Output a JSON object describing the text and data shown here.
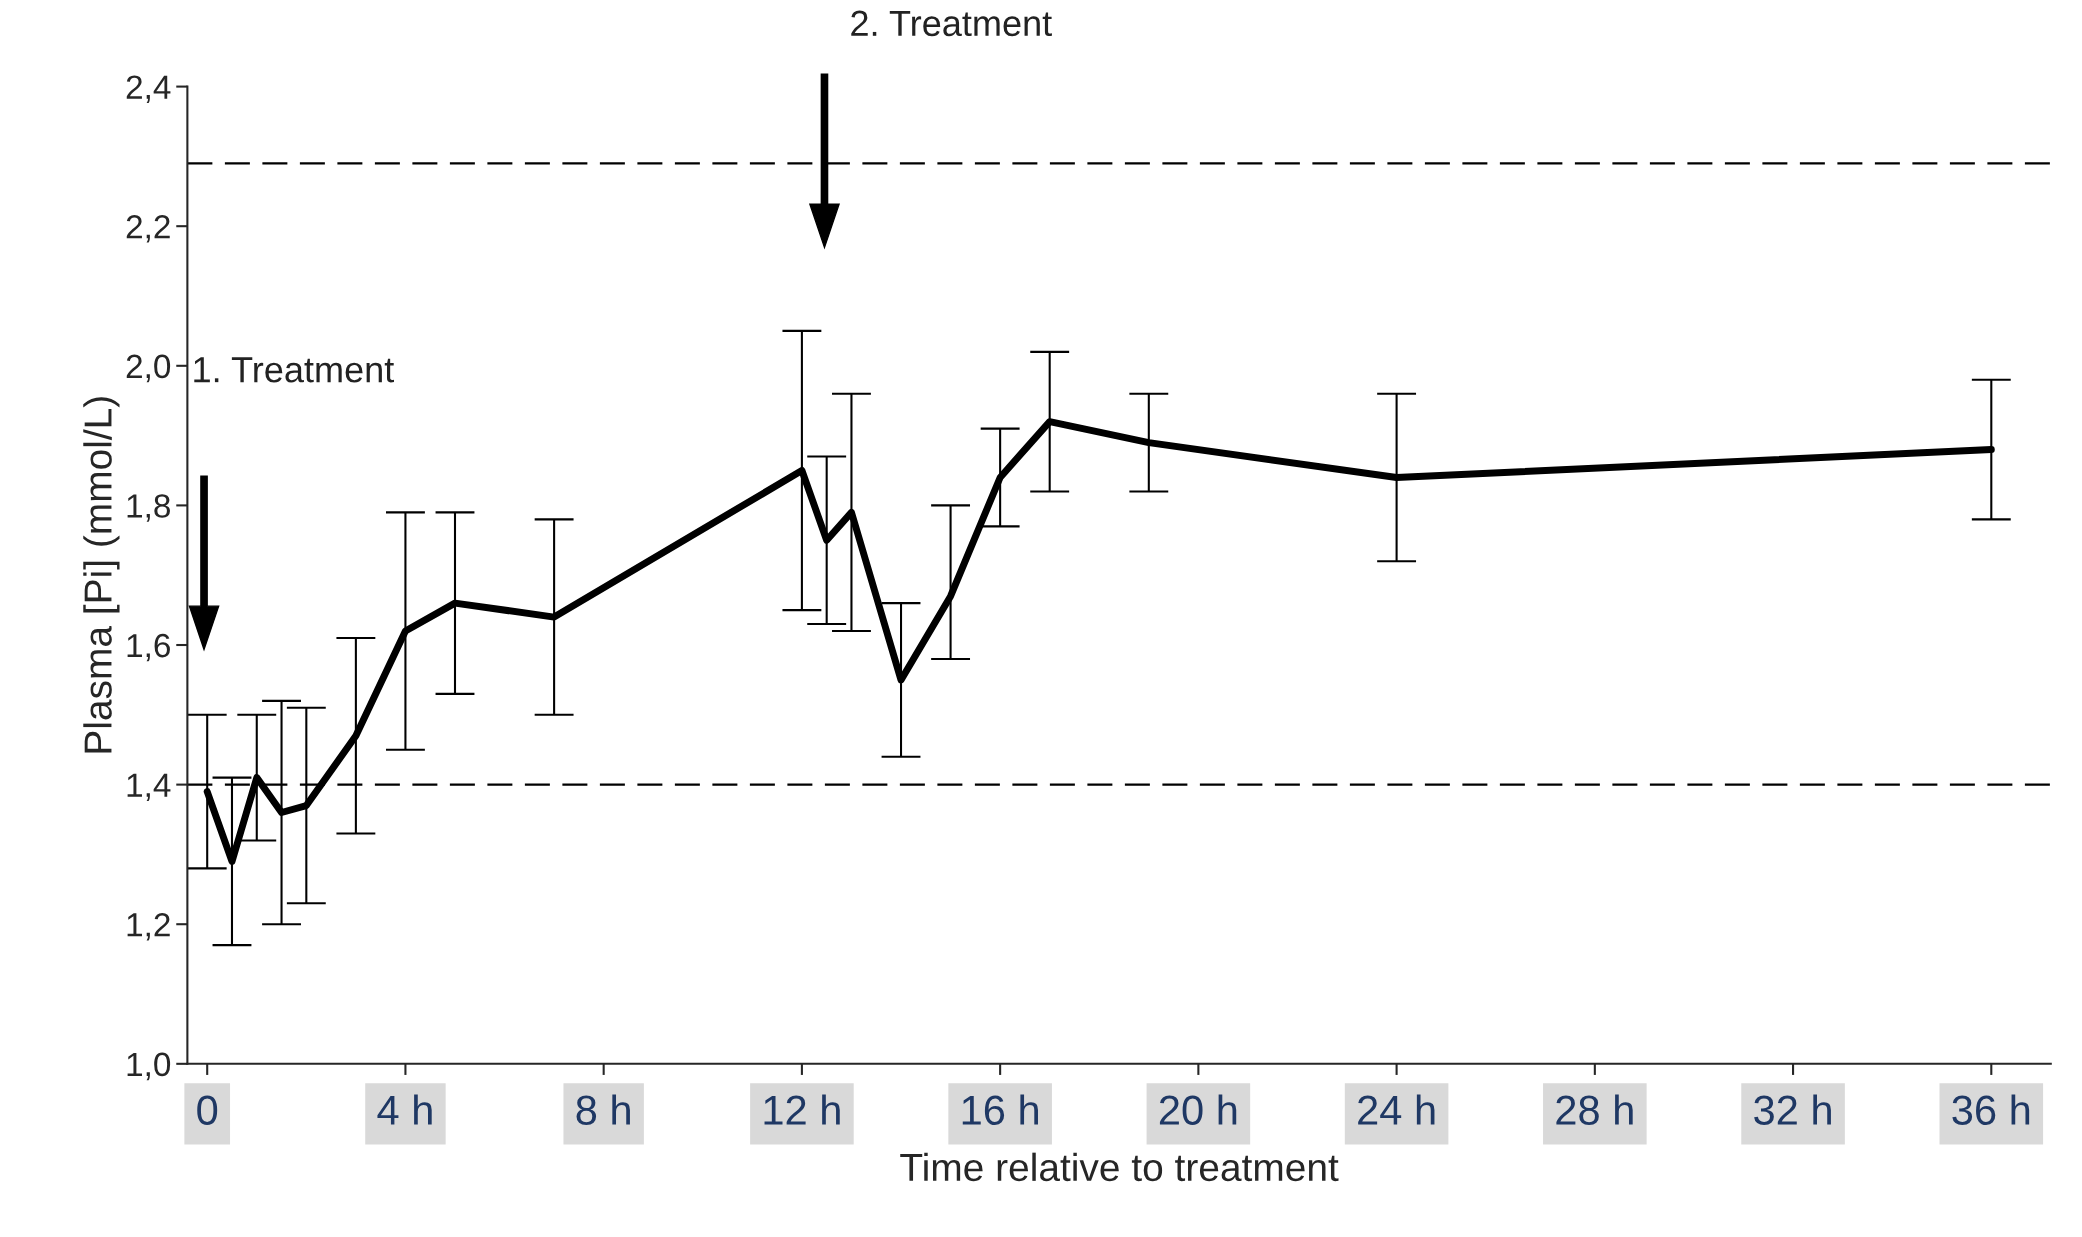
{
  "chart_data": {
    "type": "line",
    "xlabel": "Time relative to treatment",
    "ylabel": "Plasma [Pi] (mmol/L)",
    "x": [
      0,
      0.5,
      1,
      1.5,
      2,
      3,
      4,
      5,
      7,
      12,
      12.5,
      13,
      14,
      15,
      16,
      17,
      19,
      24,
      36
    ],
    "series": [
      {
        "color": "#000000",
        "values": [
          1.39,
          1.29,
          1.41,
          1.36,
          1.37,
          1.47,
          1.62,
          1.66,
          1.64,
          1.85,
          1.75,
          1.79,
          1.55,
          1.67,
          1.84,
          1.92,
          1.89,
          1.84,
          1.88
        ],
        "errors": [
          [
            1.28,
            1.5
          ],
          [
            1.17,
            1.41
          ],
          [
            1.32,
            1.5
          ],
          [
            1.2,
            1.52
          ],
          [
            1.23,
            1.51
          ],
          [
            1.33,
            1.61
          ],
          [
            1.45,
            1.79
          ],
          [
            1.53,
            1.79
          ],
          [
            1.5,
            1.78
          ],
          [
            1.65,
            2.05
          ],
          [
            1.63,
            1.87
          ],
          [
            1.62,
            1.96
          ],
          [
            1.44,
            1.66
          ],
          [
            1.58,
            1.8
          ],
          [
            1.77,
            1.91
          ],
          [
            1.82,
            2.02
          ],
          [
            1.82,
            1.96
          ],
          [
            1.72,
            1.96
          ],
          [
            1.78,
            1.98
          ]
        ]
      }
    ],
    "xlim": [
      -0.4,
      37.2
    ],
    "ylim": [
      1.0,
      2.4
    ],
    "xticks": [
      0,
      {
        "value": 4,
        "label": "4 h"
      },
      {
        "value": 8,
        "label": "8 h"
      },
      {
        "value": 12,
        "label": "12 h"
      },
      {
        "value": 16,
        "label": "16 h"
      },
      {
        "value": 20,
        "label": "20 h"
      },
      {
        "value": 24,
        "label": "24 h"
      },
      {
        "value": 28,
        "label": "28 h"
      },
      {
        "value": 32,
        "label": "32 h"
      },
      {
        "value": 36,
        "label": "36 h"
      }
    ],
    "yticks": [
      {
        "value": 1.0,
        "label": "1,0"
      },
      {
        "value": 1.2,
        "label": "1,2"
      },
      {
        "value": 1.4,
        "label": "1,4"
      },
      {
        "value": 1.6,
        "label": "1,6"
      },
      {
        "value": 1.8,
        "label": "1,8"
      },
      {
        "value": 2.0,
        "label": "2,0"
      },
      {
        "value": 2.2,
        "label": "2,2"
      },
      {
        "value": 2.4,
        "label": "2,4"
      }
    ],
    "ref_lines": [
      {
        "axis": "y",
        "value": 2.29,
        "line_style": "dashed",
        "color": "#000000"
      },
      {
        "axis": "y",
        "value": 1.4,
        "line_style": "dashed",
        "color": "#000000"
      }
    ],
    "annotations": [
      "1. Treatment",
      "2. Treatment"
    ],
    "marker": "none",
    "line_style": "solid",
    "grid": false
  }
}
